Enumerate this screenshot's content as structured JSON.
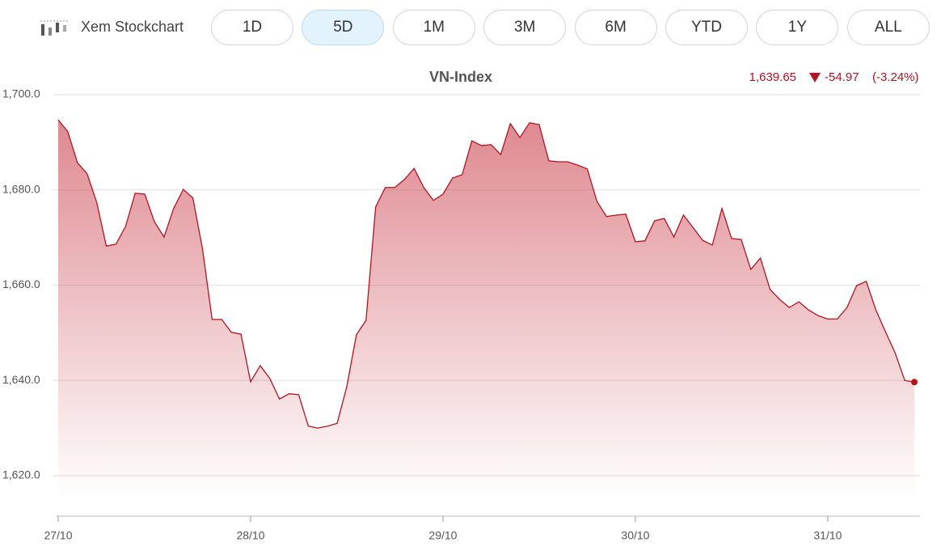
{
  "toolbar": {
    "title": "Xem Stockchart",
    "ranges": [
      "1D",
      "5D",
      "1M",
      "3M",
      "6M",
      "YTD",
      "1Y",
      "ALL"
    ],
    "selected_index": 1
  },
  "chart_data": {
    "type": "area",
    "title": "VN-Index",
    "last_price": "1,639.65",
    "change": "-54.97",
    "change_percent": "(-3.24%)",
    "color": "#b8121e",
    "grid": true,
    "categories": [
      "27/10",
      null,
      null,
      null,
      null,
      null,
      null,
      null,
      null,
      null,
      null,
      null,
      null,
      null,
      null,
      null,
      null,
      null,
      null,
      null,
      "28/10",
      null,
      null,
      null,
      null,
      null,
      null,
      null,
      null,
      null,
      null,
      null,
      null,
      null,
      null,
      null,
      null,
      null,
      null,
      null,
      "29/10",
      null,
      null,
      null,
      null,
      null,
      null,
      null,
      null,
      null,
      null,
      null,
      null,
      null,
      null,
      null,
      null,
      null,
      null,
      null,
      "30/10",
      null,
      null,
      null,
      null,
      null,
      null,
      null,
      null,
      null,
      null,
      null,
      null,
      null,
      null,
      null,
      null,
      null,
      null,
      null,
      "31/10",
      null,
      null,
      null,
      null,
      null,
      null,
      null,
      null,
      null
    ],
    "values": [
      1694.7,
      1692.2,
      1685.7,
      1683.4,
      1677.4,
      1668.2,
      1668.6,
      1672.3,
      1679.3,
      1679.1,
      1673.3,
      1670.1,
      1676.1,
      1680.1,
      1678.3,
      1667.6,
      1652.8,
      1652.8,
      1650.1,
      1649.7,
      1639.7,
      1643.1,
      1640.4,
      1636.1,
      1637.2,
      1637.0,
      1630.4,
      1630.0,
      1630.4,
      1631.0,
      1638.7,
      1649.6,
      1652.6,
      1676.4,
      1680.5,
      1680.5,
      1682.2,
      1684.5,
      1680.5,
      1677.8,
      1679.1,
      1682.5,
      1683.2,
      1690.3,
      1689.3,
      1689.5,
      1687.4,
      1693.9,
      1691.0,
      1694.1,
      1693.7,
      1686.1,
      1685.9,
      1685.9,
      1685.2,
      1684.4,
      1677.6,
      1674.4,
      1674.7,
      1674.9,
      1669.1,
      1669.3,
      1673.5,
      1674.0,
      1670.1,
      1674.7,
      1672.1,
      1669.4,
      1668.4,
      1676.1,
      1669.8,
      1669.6,
      1663.3,
      1665.7,
      1659.1,
      1657.0,
      1655.3,
      1656.5,
      1654.8,
      1653.6,
      1652.9,
      1652.9,
      1655.3,
      1659.9,
      1660.8,
      1654.8,
      1650.2,
      1645.8,
      1640.0,
      1639.65
    ],
    "ylim": [
      1611.5,
      1703
    ],
    "yticks": [
      {
        "value": 1620,
        "label": "1,620.0"
      },
      {
        "value": 1640,
        "label": "1,640.0"
      },
      {
        "value": 1660,
        "label": "1,660.0"
      },
      {
        "value": 1680,
        "label": "1,680.0"
      },
      {
        "value": 1700,
        "label": "1,700.0"
      }
    ]
  }
}
